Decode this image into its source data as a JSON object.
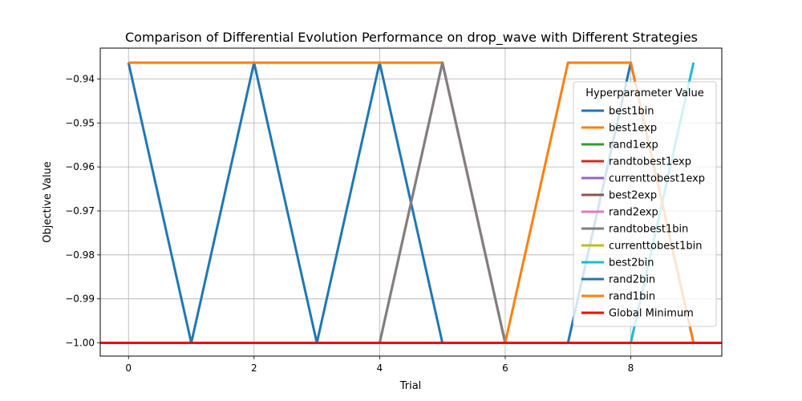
{
  "chart_data": {
    "type": "line",
    "title": "Comparison of Differential Evolution Performance on drop_wave with Different Strategies",
    "xlabel": "Trial",
    "ylabel": "Objective Value",
    "xlim": [
      -0.45,
      9.45
    ],
    "ylim": [
      -1.003,
      -0.933
    ],
    "xticks": [
      0,
      2,
      4,
      6,
      8
    ],
    "xtick_labels": [
      "0",
      "2",
      "4",
      "6",
      "8"
    ],
    "yticks": [
      -1.0,
      -0.99,
      -0.98,
      -0.97,
      -0.96,
      -0.95,
      -0.94
    ],
    "ytick_labels": [
      "−1.00",
      "−0.99",
      "−0.98",
      "−0.97",
      "−0.96",
      "−0.95",
      "−0.94"
    ],
    "grid": true,
    "legend": {
      "title": "Hyperparameter Value",
      "position": "right"
    },
    "series": [
      {
        "name": "best1bin",
        "color": "#1f77b4",
        "x": [
          0,
          1,
          2,
          3,
          4,
          5,
          6,
          7,
          8,
          9
        ],
        "values": [
          -0.9363,
          -1.0,
          -0.9363,
          -1.0,
          -0.9363,
          -1.0,
          -1.0,
          -1.0,
          -1.0,
          -1.0
        ]
      },
      {
        "name": "best1exp",
        "color": "#ff7f0e",
        "x": [
          0,
          1,
          2,
          3,
          4,
          5,
          6,
          7,
          8,
          9
        ],
        "values": [
          -0.9363,
          -0.9363,
          -0.9363,
          -0.9363,
          -0.9363,
          -0.9363,
          -1.0,
          -1.0,
          -1.0,
          -1.0
        ]
      },
      {
        "name": "rand1exp",
        "color": "#2ca02c",
        "x": [
          0,
          1,
          2,
          3,
          4,
          5,
          6,
          7,
          8,
          9
        ],
        "values": [
          -1.0,
          -1.0,
          -1.0,
          -1.0,
          -1.0,
          -1.0,
          -1.0,
          -1.0,
          -1.0,
          -1.0
        ]
      },
      {
        "name": "randtobest1exp",
        "color": "#d62728",
        "x": [
          0,
          1,
          2,
          3,
          4,
          5,
          6,
          7,
          8,
          9
        ],
        "values": [
          -1.0,
          -1.0,
          -1.0,
          -1.0,
          -1.0,
          -1.0,
          -1.0,
          -1.0,
          -1.0,
          -1.0
        ]
      },
      {
        "name": "currenttobest1exp",
        "color": "#9467bd",
        "x": [
          0,
          1,
          2,
          3,
          4,
          5,
          6,
          7,
          8,
          9
        ],
        "values": [
          -1.0,
          -1.0,
          -1.0,
          -1.0,
          -1.0,
          -1.0,
          -1.0,
          -1.0,
          -1.0,
          -1.0
        ]
      },
      {
        "name": "best2exp",
        "color": "#8c564b",
        "x": [
          0,
          1,
          2,
          3,
          4,
          5,
          6,
          7,
          8,
          9
        ],
        "values": [
          -1.0,
          -1.0,
          -1.0,
          -1.0,
          -1.0,
          -0.9363,
          -1.0,
          -1.0,
          -1.0,
          -1.0
        ]
      },
      {
        "name": "rand2exp",
        "color": "#e377c2",
        "x": [
          0,
          1,
          2,
          3,
          4,
          5,
          6,
          7,
          8,
          9
        ],
        "values": [
          -1.0,
          -1.0,
          -1.0,
          -1.0,
          -1.0,
          -0.9363,
          -1.0,
          -1.0,
          -1.0,
          -1.0
        ]
      },
      {
        "name": "randtobest1bin",
        "color": "#7f7f7f",
        "x": [
          0,
          1,
          2,
          3,
          4,
          5,
          6,
          7,
          8,
          9
        ],
        "values": [
          -1.0,
          -1.0,
          -1.0,
          -1.0,
          -1.0,
          -0.9363,
          -1.0,
          -1.0,
          -1.0,
          -1.0
        ]
      },
      {
        "name": "currenttobest1bin",
        "color": "#bcbd22",
        "x": [
          0,
          1,
          2,
          3,
          4,
          5,
          6,
          7,
          8,
          9
        ],
        "values": [
          -1.0,
          -1.0,
          -1.0,
          -1.0,
          -1.0,
          -1.0,
          -1.0,
          -1.0,
          -1.0,
          -1.0
        ]
      },
      {
        "name": "best2bin",
        "color": "#17becf",
        "x": [
          0,
          1,
          2,
          3,
          4,
          5,
          6,
          7,
          8,
          9
        ],
        "values": [
          -1.0,
          -1.0,
          -1.0,
          -1.0,
          -1.0,
          -1.0,
          -1.0,
          -1.0,
          -1.0,
          -0.9363
        ]
      },
      {
        "name": "rand2bin",
        "color": "#1f77b4",
        "x": [
          0,
          1,
          2,
          3,
          4,
          5,
          6,
          7,
          8,
          9
        ],
        "values": [
          -1.0,
          -1.0,
          -1.0,
          -1.0,
          -1.0,
          -1.0,
          -1.0,
          -1.0,
          -0.9363,
          -1.0
        ]
      },
      {
        "name": "rand1bin",
        "color": "#ff7f0e",
        "x": [
          0,
          1,
          2,
          3,
          4,
          5,
          6,
          7,
          8,
          9
        ],
        "values": [
          -1.0,
          -1.0,
          -1.0,
          -1.0,
          -1.0,
          -1.0,
          -1.0,
          -0.9363,
          -0.9363,
          -1.0
        ]
      }
    ],
    "reference_line": {
      "name": "Global Minimum",
      "color": "#ff0000",
      "value": -1.0
    }
  }
}
